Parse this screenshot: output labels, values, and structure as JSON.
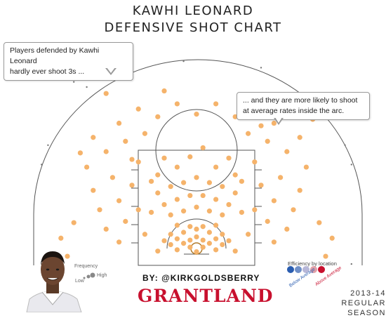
{
  "header": {
    "title_line1": "KAWHI LEONARD",
    "title_line2": "DEFENSIVE SHOT CHART"
  },
  "annotations": {
    "left_line1": "Players defended by Kawhi Leonard",
    "left_line2": "hardly ever shoot 3s ...",
    "right_line1": "... and they are more likely to shoot",
    "right_line2": "at average rates inside the arc."
  },
  "footer": {
    "credit": "BY: @KIRKGOLDSBERRY",
    "brand": "GRANTLAND",
    "season_line1": "2013-14",
    "season_line2": "REGULAR SEASON"
  },
  "legend": {
    "frequency_label": "Frequency",
    "low_label": "Low",
    "high_label": "High",
    "efficiency_label": "Efficiency by location",
    "below_label": "Below Average",
    "above_label": "Above Average"
  },
  "colors": {
    "shot_marker": "#f5b36b",
    "low_frequency_marker": "#777777",
    "court_line": "#555555",
    "below_average": "#2a5db0",
    "above_average": "#c8102e"
  },
  "chart_data": {
    "type": "scatter",
    "x_label": "",
    "y_label": "",
    "xlim": [
      -25,
      25
    ],
    "ylim": [
      -5,
      28
    ],
    "grid": false,
    "legend_placement": "bottom-right",
    "series": [
      {
        "values": [
          {
            "x": 0,
            "y": -0.5
          },
          {
            "x": -1,
            "y": 0.2
          },
          {
            "x": 1,
            "y": 0.2
          },
          {
            "x": -2,
            "y": 0.8
          },
          {
            "x": 2,
            "y": 0.8
          },
          {
            "x": -1,
            "y": 1.3
          },
          {
            "x": 1,
            "y": 1.3
          },
          {
            "x": 0,
            "y": 1.8
          },
          {
            "x": -3,
            "y": -0.2
          },
          {
            "x": 3,
            "y": -0.2
          },
          {
            "x": -3,
            "y": 1.5
          },
          {
            "x": 3,
            "y": 1.5
          },
          {
            "x": -2,
            "y": 2.5
          },
          {
            "x": 2,
            "y": 2.5
          },
          {
            "x": -4,
            "y": 0.6
          },
          {
            "x": 4,
            "y": 0.6
          },
          {
            "x": -4,
            "y": 2.2
          },
          {
            "x": 4,
            "y": 2.2
          },
          {
            "x": 0,
            "y": 3
          },
          {
            "x": -5,
            "y": 1.2
          },
          {
            "x": 5,
            "y": 1.2
          },
          {
            "x": -1,
            "y": 3.4
          },
          {
            "x": 1,
            "y": 3.4
          },
          {
            "x": -6,
            "y": -0.4
          },
          {
            "x": 6,
            "y": -0.4
          },
          {
            "x": -3,
            "y": 3.6
          },
          {
            "x": 3,
            "y": 3.6
          },
          {
            "x": -4,
            "y": 5.2
          },
          {
            "x": 4,
            "y": 5.2
          },
          {
            "x": -2,
            "y": 5.8
          },
          {
            "x": 2,
            "y": 5.8
          },
          {
            "x": 0,
            "y": 6.4
          },
          {
            "x": -5,
            "y": 6.8
          },
          {
            "x": 5,
            "y": 6.8
          },
          {
            "x": -3,
            "y": 7.6
          },
          {
            "x": 3,
            "y": 7.6
          },
          {
            "x": -1,
            "y": 8.2
          },
          {
            "x": 1,
            "y": 8.2
          },
          {
            "x": -6,
            "y": 8.6
          },
          {
            "x": 6,
            "y": 8.6
          },
          {
            "x": -4,
            "y": 9.6
          },
          {
            "x": 4,
            "y": 9.6
          },
          {
            "x": -2,
            "y": 10.2
          },
          {
            "x": 2,
            "y": 10.2
          },
          {
            "x": 0,
            "y": 11
          },
          {
            "x": -7,
            "y": 5.6
          },
          {
            "x": 7,
            "y": 5.6
          },
          {
            "x": -6,
            "y": 11.4
          },
          {
            "x": 6,
            "y": 11.4
          },
          {
            "x": -3,
            "y": 12.6
          },
          {
            "x": 3,
            "y": 12.6
          },
          {
            "x": -5,
            "y": 14
          },
          {
            "x": 5,
            "y": 14
          },
          {
            "x": -1,
            "y": 14.2
          },
          {
            "x": 1,
            "y": 15.6
          },
          {
            "x": -12,
            "y": 1
          },
          {
            "x": 12,
            "y": 1
          },
          {
            "x": -14,
            "y": 3
          },
          {
            "x": 14,
            "y": 3
          },
          {
            "x": -11,
            "y": 4.2
          },
          {
            "x": 11,
            "y": 4.2
          },
          {
            "x": -15,
            "y": 6
          },
          {
            "x": 15,
            "y": 6
          },
          {
            "x": -12,
            "y": 7.4
          },
          {
            "x": 12,
            "y": 7.4
          },
          {
            "x": -16,
            "y": 9
          },
          {
            "x": 16,
            "y": 9
          },
          {
            "x": -10,
            "y": 9.8
          },
          {
            "x": 10,
            "y": 9.8
          },
          {
            "x": -13,
            "y": 11
          },
          {
            "x": 13,
            "y": 11
          },
          {
            "x": -17,
            "y": 12.6
          },
          {
            "x": 17,
            "y": 12.6
          },
          {
            "x": -9,
            "y": 13.4
          },
          {
            "x": 9,
            "y": 13.4
          },
          {
            "x": -14,
            "y": 15
          },
          {
            "x": 14,
            "y": 15
          },
          {
            "x": -11,
            "y": 16.6
          },
          {
            "x": 11,
            "y": 16.6
          },
          {
            "x": -16,
            "y": 17.2
          },
          {
            "x": 16,
            "y": 17.2
          },
          {
            "x": -8,
            "y": 17.8
          },
          {
            "x": 8,
            "y": 17.8
          },
          {
            "x": -12,
            "y": 19.4
          },
          {
            "x": 12,
            "y": 19.4
          },
          {
            "x": -6,
            "y": 20.4
          },
          {
            "x": 6,
            "y": 20.4
          },
          {
            "x": -9,
            "y": 21.6
          },
          {
            "x": 9,
            "y": 21.6
          },
          {
            "x": -3,
            "y": 22.4
          },
          {
            "x": 3,
            "y": 22.4
          },
          {
            "x": 0,
            "y": 20.8
          },
          {
            "x": -8,
            "y": 2.2
          },
          {
            "x": 8,
            "y": 2.2
          },
          {
            "x": -9,
            "y": 6
          },
          {
            "x": 9,
            "y": 6
          },
          {
            "x": -7,
            "y": 10.4
          },
          {
            "x": 7,
            "y": 10.4
          },
          {
            "x": -10,
            "y": 13.8
          },
          {
            "x": 10,
            "y": 19
          },
          {
            "x": -20,
            "y": -1.2
          },
          {
            "x": 20,
            "y": -1.2
          },
          {
            "x": -19,
            "y": 4
          },
          {
            "x": 19,
            "y": 4
          },
          {
            "x": -21,
            "y": 1.6
          },
          {
            "x": 21,
            "y": 1.6
          },
          {
            "x": -18,
            "y": 14.8
          },
          {
            "x": 18,
            "y": 20
          },
          {
            "x": -5,
            "y": 24.4
          },
          {
            "x": -14,
            "y": 24
          }
        ]
      }
    ],
    "low_frequency_points": [
      {
        "x": -23,
        "y": 16
      },
      {
        "x": 23,
        "y": 16
      },
      {
        "x": -24,
        "y": 13
      },
      {
        "x": 24,
        "y": 13
      },
      {
        "x": -24,
        "y": -2.4
      },
      {
        "x": 24,
        "y": -2.4
      },
      {
        "x": -17,
        "y": 25
      },
      {
        "x": -19,
        "y": 25.8
      },
      {
        "x": -2,
        "y": 29
      },
      {
        "x": 10,
        "y": 28
      }
    ]
  }
}
